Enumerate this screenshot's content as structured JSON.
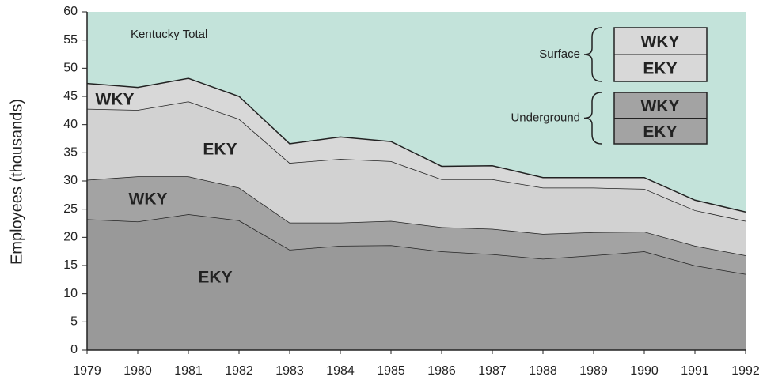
{
  "chart_data": {
    "type": "stacked_area",
    "ylabel": "Employees (thousands)",
    "annotation": "Kentucky Total",
    "background_color": "#c3e3da",
    "x": [
      1979,
      1980,
      1981,
      1982,
      1983,
      1984,
      1985,
      1986,
      1987,
      1988,
      1989,
      1990,
      1991,
      1992
    ],
    "xlim": [
      1979,
      1992
    ],
    "xticks": [
      1979,
      1980,
      1981,
      1982,
      1983,
      1984,
      1985,
      1986,
      1987,
      1988,
      1989,
      1990,
      1991,
      1992
    ],
    "ylim": [
      0,
      60
    ],
    "yticks": [
      0,
      5,
      10,
      15,
      20,
      25,
      30,
      35,
      40,
      45,
      50,
      55,
      60
    ],
    "series": [
      {
        "name": "EKY",
        "group": "Underground",
        "color": "#999999",
        "values": [
          23.2,
          22.8,
          24.1,
          23.0,
          17.8,
          18.5,
          18.6,
          17.5,
          17.0,
          16.2,
          16.8,
          17.5,
          15.0,
          13.5
        ]
      },
      {
        "name": "WKY",
        "group": "Underground",
        "color": "#a3a3a3",
        "values": [
          7.0,
          8.0,
          6.7,
          5.8,
          4.8,
          4.1,
          4.3,
          4.3,
          4.5,
          4.4,
          4.1,
          3.5,
          3.5,
          3.3
        ]
      },
      {
        "name": "EKY",
        "group": "Surface",
        "color": "#d2d2d2",
        "values": [
          12.6,
          11.8,
          13.3,
          12.2,
          10.6,
          11.3,
          10.6,
          8.5,
          8.8,
          8.2,
          7.9,
          7.6,
          6.3,
          6.1
        ]
      },
      {
        "name": "WKY",
        "group": "Surface",
        "color": "#d8d8d8",
        "values": [
          4.5,
          4.0,
          4.1,
          4.0,
          3.4,
          3.9,
          3.5,
          2.3,
          2.4,
          1.8,
          1.8,
          2.0,
          1.8,
          1.6
        ]
      }
    ]
  }
}
